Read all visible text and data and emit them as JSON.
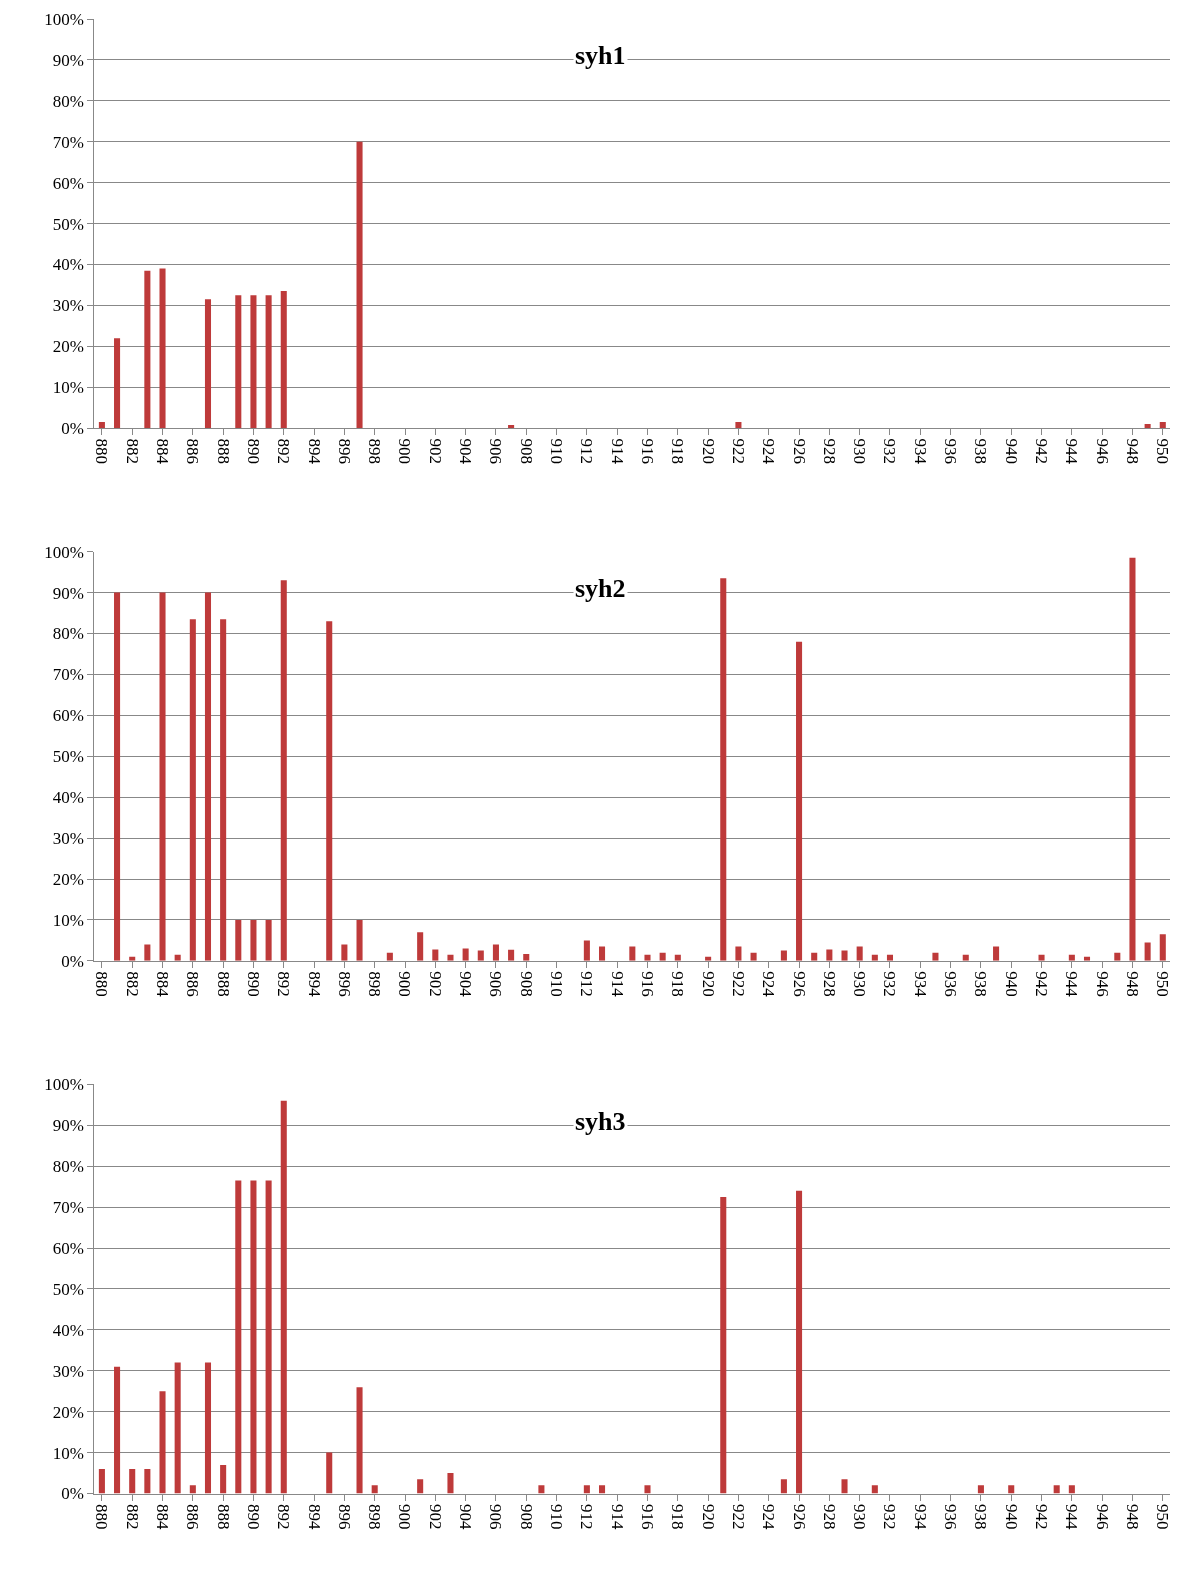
{
  "chart_data": [
    {
      "type": "bar",
      "title": "syh1",
      "categories": [
        "880",
        null,
        "882",
        null,
        "884",
        null,
        "886",
        null,
        "888",
        null,
        "890",
        null,
        "892",
        null,
        "894",
        null,
        "896",
        null,
        "898",
        null,
        "900",
        null,
        "902",
        null,
        "904",
        null,
        "906",
        null,
        "908",
        null,
        "910",
        null,
        "912",
        null,
        "914",
        null,
        "916",
        null,
        "918",
        null,
        "920",
        null,
        "922",
        null,
        "924",
        null,
        "926",
        null,
        "928",
        null,
        "930",
        null,
        "932",
        null,
        "934",
        null,
        "936",
        null,
        "938",
        null,
        "940",
        null,
        "942",
        null,
        "944",
        null,
        "946",
        null,
        "948",
        null,
        "950"
      ],
      "values": [
        1.5,
        22,
        0,
        38.5,
        39,
        0,
        0,
        31.5,
        0,
        32.5,
        32.5,
        32.5,
        33.5,
        0,
        0,
        0,
        0,
        70,
        0,
        0,
        0,
        0,
        0,
        0,
        0,
        0,
        0,
        0.8,
        0,
        0,
        0,
        0,
        0,
        0,
        0,
        0,
        0,
        0,
        0,
        0,
        0,
        0,
        1.5,
        0,
        0,
        0,
        0,
        0,
        0,
        0,
        0,
        0,
        0,
        0,
        0,
        0,
        0,
        0,
        0,
        0,
        0,
        0,
        0,
        0,
        0,
        0,
        0,
        0,
        0,
        1,
        1.5
      ],
      "color": "#be3a3a",
      "ylim": [
        0,
        100
      ],
      "yticks": [
        {
          "value": 0,
          "label": "0%"
        },
        {
          "value": 10,
          "label": "10%"
        },
        {
          "value": 20,
          "label": "20%"
        },
        {
          "value": 30,
          "label": "30%"
        },
        {
          "value": 40,
          "label": "40%"
        },
        {
          "value": 50,
          "label": "50%"
        },
        {
          "value": 60,
          "label": "60%"
        },
        {
          "value": 70,
          "label": "70%"
        },
        {
          "value": 80,
          "label": "80%"
        },
        {
          "value": 90,
          "label": "90%"
        },
        {
          "value": 100,
          "label": "100%"
        }
      ],
      "grid": "y"
    },
    {
      "type": "bar",
      "title": "syh2",
      "categories": [
        "880",
        null,
        "882",
        null,
        "884",
        null,
        "886",
        null,
        "888",
        null,
        "890",
        null,
        "892",
        null,
        "894",
        null,
        "896",
        null,
        "898",
        null,
        "900",
        null,
        "902",
        null,
        "904",
        null,
        "906",
        null,
        "908",
        null,
        "910",
        null,
        "912",
        null,
        "914",
        null,
        "916",
        null,
        "918",
        null,
        "920",
        null,
        "922",
        null,
        "924",
        null,
        "926",
        null,
        "928",
        null,
        "930",
        null,
        "932",
        null,
        "934",
        null,
        "936",
        null,
        "938",
        null,
        "940",
        null,
        "942",
        null,
        "944",
        null,
        "946",
        null,
        "948",
        null,
        "950"
      ],
      "values": [
        0,
        90,
        1,
        4,
        90,
        1.5,
        83.5,
        90,
        83.5,
        10,
        10,
        10,
        93,
        0,
        0,
        83,
        4,
        10,
        0,
        2,
        0,
        7,
        2.8,
        1.5,
        3,
        2.5,
        4,
        2.7,
        1.7,
        0,
        0,
        0,
        5,
        3.5,
        0,
        3.5,
        1.5,
        2,
        1.5,
        0,
        1,
        93.5,
        3.5,
        2,
        0,
        2.5,
        78,
        2,
        2.8,
        2.5,
        3.5,
        1.5,
        1.5,
        0,
        0,
        2,
        0,
        1.5,
        0,
        3.5,
        0,
        0,
        1.5,
        0,
        1.5,
        1,
        0,
        2,
        98.5,
        4.5,
        6.5
      ],
      "color": "#be3a3a",
      "ylim": [
        0,
        100
      ],
      "yticks": [
        {
          "value": 0,
          "label": "0%"
        },
        {
          "value": 10,
          "label": "10%"
        },
        {
          "value": 20,
          "label": "20%"
        },
        {
          "value": 30,
          "label": "30%"
        },
        {
          "value": 40,
          "label": "40%"
        },
        {
          "value": 50,
          "label": "50%"
        },
        {
          "value": 60,
          "label": "60%"
        },
        {
          "value": 70,
          "label": "70%"
        },
        {
          "value": 80,
          "label": "80%"
        },
        {
          "value": 90,
          "label": "90%"
        },
        {
          "value": 100,
          "label": "100%"
        }
      ],
      "grid": "y"
    },
    {
      "type": "bar",
      "title": "syh3",
      "categories": [
        "880",
        null,
        "882",
        null,
        "884",
        null,
        "886",
        null,
        "888",
        null,
        "890",
        null,
        "892",
        null,
        "894",
        null,
        "896",
        null,
        "898",
        null,
        "900",
        null,
        "902",
        null,
        "904",
        null,
        "906",
        null,
        "908",
        null,
        "910",
        null,
        "912",
        null,
        "914",
        null,
        "916",
        null,
        "918",
        null,
        "920",
        null,
        "922",
        null,
        "924",
        null,
        "926",
        null,
        "928",
        null,
        "930",
        null,
        "932",
        null,
        "934",
        null,
        "936",
        null,
        "938",
        null,
        "940",
        null,
        "942",
        null,
        "944",
        null,
        "946",
        null,
        "948",
        null,
        "950"
      ],
      "values": [
        6,
        31,
        6,
        6,
        25,
        32,
        2,
        32,
        7,
        76.5,
        76.5,
        76.5,
        96,
        0,
        0,
        10,
        0,
        26,
        2,
        0,
        0,
        3.5,
        0,
        5,
        0,
        0,
        0,
        0,
        0,
        2,
        0,
        0,
        2,
        2,
        0,
        0,
        2,
        0,
        0,
        0,
        0,
        72.5,
        0,
        0,
        0,
        3.5,
        74,
        0,
        0,
        3.5,
        0,
        2,
        0,
        0,
        0,
        0,
        0,
        0,
        2,
        0,
        2,
        0,
        0,
        2,
        2,
        0,
        0,
        0,
        0,
        0,
        0
      ],
      "color": "#be3a3a",
      "ylim": [
        0,
        100
      ],
      "yticks": [
        {
          "value": 0,
          "label": "0%"
        },
        {
          "value": 10,
          "label": "10%"
        },
        {
          "value": 20,
          "label": "20%"
        },
        {
          "value": 30,
          "label": "30%"
        },
        {
          "value": 40,
          "label": "40%"
        },
        {
          "value": 50,
          "label": "50%"
        },
        {
          "value": 60,
          "label": "60%"
        },
        {
          "value": 70,
          "label": "70%"
        },
        {
          "value": 80,
          "label": "80%"
        },
        {
          "value": 90,
          "label": "90%"
        },
        {
          "value": 100,
          "label": "100%"
        }
      ],
      "grid": "y"
    }
  ]
}
